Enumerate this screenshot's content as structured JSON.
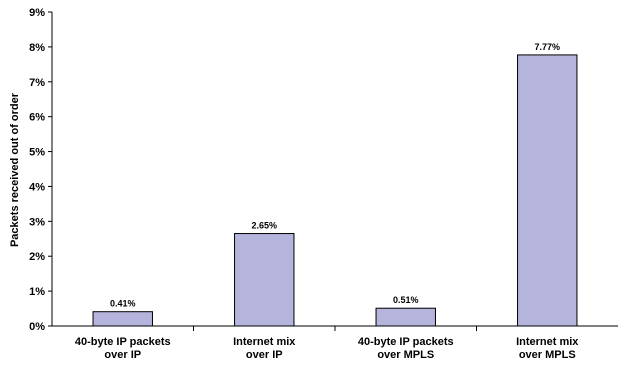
{
  "chart_data": {
    "type": "bar",
    "title": "",
    "xlabel": "",
    "ylabel": "Packets received out of order",
    "ylim": [
      0,
      9
    ],
    "y_ticks": [
      "0%",
      "1%",
      "2%",
      "3%",
      "4%",
      "5%",
      "6%",
      "7%",
      "8%",
      "9%"
    ],
    "categories": [
      [
        "40-byte IP packets",
        "over IP"
      ],
      [
        "Internet mix",
        "over IP"
      ],
      [
        "40-byte IP packets",
        "over MPLS"
      ],
      [
        "Internet mix",
        "over MPLS"
      ]
    ],
    "values": [
      0.41,
      2.65,
      0.51,
      7.77
    ],
    "value_labels": [
      "0.41%",
      "2.65%",
      "0.51%",
      "7.77%"
    ],
    "bar_color": "#b4b4dc",
    "bar_stroke": "#000000",
    "grid": false,
    "legend": "none"
  }
}
